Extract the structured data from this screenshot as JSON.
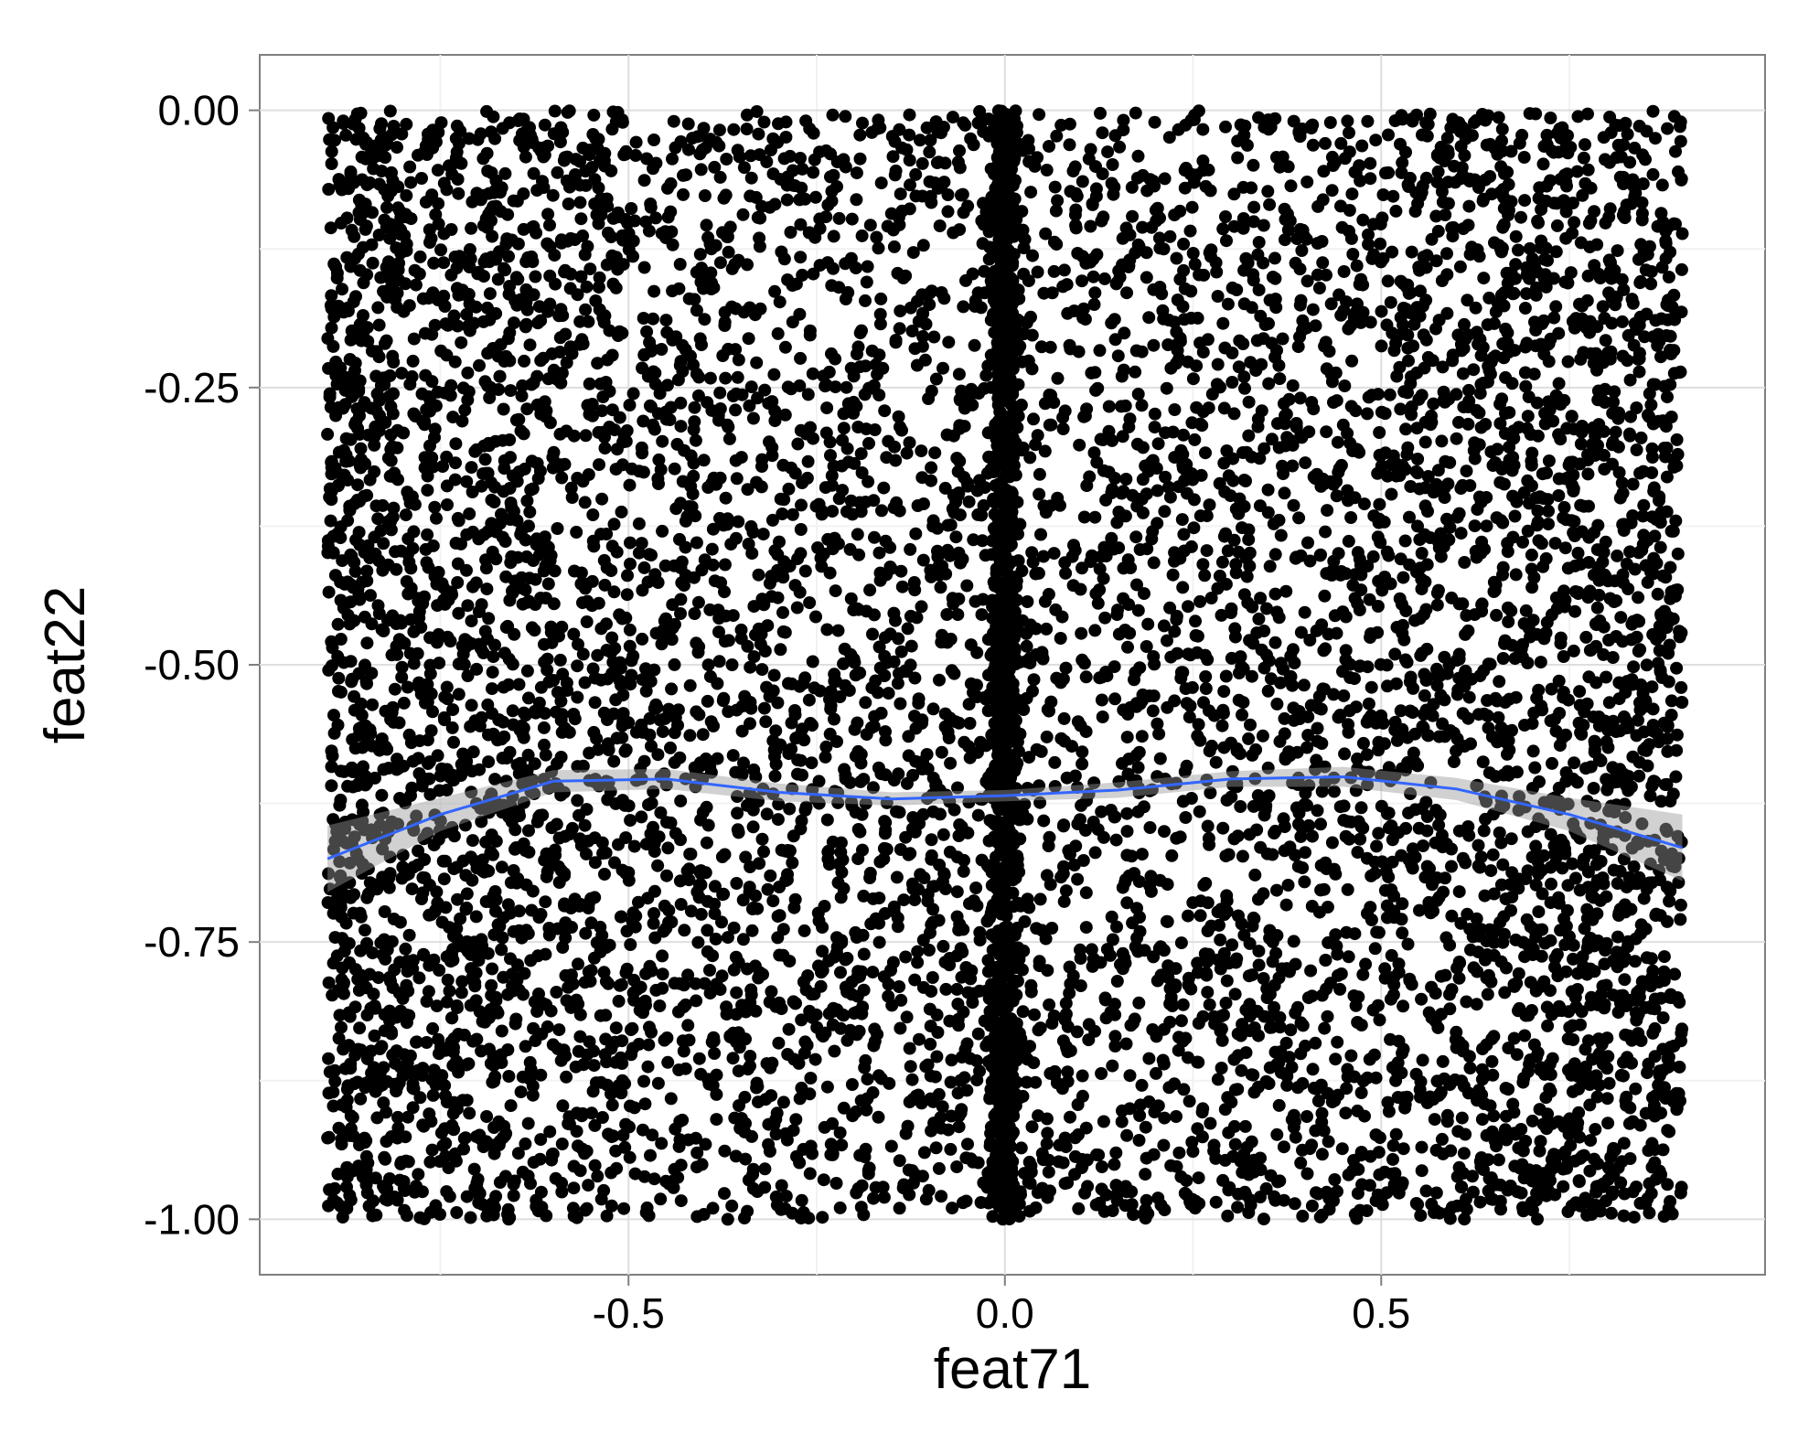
{
  "chart_data": {
    "type": "scatter",
    "title": "",
    "xlabel": "feat71",
    "ylabel": "feat22",
    "xlim": [
      -0.99,
      1.01
    ],
    "ylim": [
      -1.05,
      0.05
    ],
    "x_ticks": [
      -0.5,
      0.0,
      0.5
    ],
    "x_tick_labels": [
      "-0.5",
      "0.0",
      "0.5"
    ],
    "y_ticks": [
      0.0,
      -0.25,
      -0.5,
      -0.75,
      -1.0
    ],
    "y_tick_labels": [
      "0.00",
      "-0.25",
      "-0.50",
      "-0.75",
      "-1.00"
    ],
    "grid": true,
    "legend": "none",
    "point_color": "#000000",
    "series": [
      {
        "kind": "points",
        "x_range": [
          -0.9,
          0.9
        ],
        "y_range": [
          -1.0,
          0.0
        ],
        "approx_count": 9000,
        "dense_column_at_x": 0.0
      },
      {
        "kind": "smooth",
        "color": "#3366FF",
        "x": [
          -0.9,
          -0.75,
          -0.6,
          -0.45,
          -0.3,
          -0.15,
          0.0,
          0.15,
          0.3,
          0.45,
          0.6,
          0.75,
          0.9
        ],
        "y": [
          -0.675,
          -0.635,
          -0.605,
          -0.603,
          -0.615,
          -0.621,
          -0.618,
          -0.613,
          -0.603,
          -0.601,
          -0.612,
          -0.635,
          -0.665
        ],
        "ci_low": [
          -0.705,
          -0.65,
          -0.615,
          -0.612,
          -0.623,
          -0.627,
          -0.623,
          -0.62,
          -0.61,
          -0.61,
          -0.622,
          -0.65,
          -0.695
        ],
        "ci_high": [
          -0.645,
          -0.62,
          -0.595,
          -0.594,
          -0.607,
          -0.615,
          -0.613,
          -0.606,
          -0.596,
          -0.592,
          -0.602,
          -0.62,
          -0.635
        ]
      }
    ]
  }
}
